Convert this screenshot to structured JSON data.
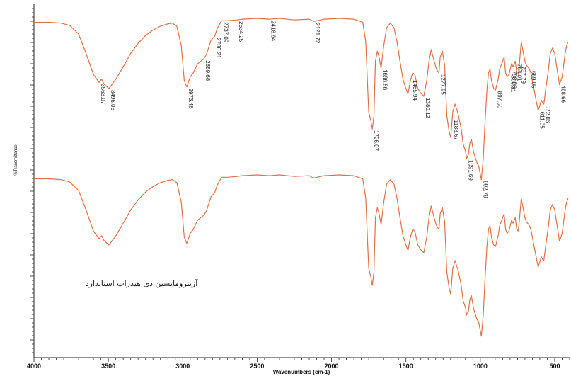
{
  "chart_data": {
    "type": "line",
    "title": "",
    "xlabel": "Wavenumbers (cm-1)",
    "ylabel": "%Transmittance",
    "xlim": [
      4000,
      400
    ],
    "x_reversed": true,
    "grid": false,
    "x_ticks": [
      "4000",
      "3500",
      "3000",
      "2500",
      "2000",
      "1500",
      "1000",
      "500"
    ],
    "x_tick_values": [
      4000,
      3500,
      3000,
      2500,
      2000,
      1500,
      1000,
      500
    ],
    "series": [
      {
        "color": "#e0704a",
        "points": [
          [
            4000,
            5
          ],
          [
            3900,
            5
          ],
          [
            3820,
            6
          ],
          [
            3760,
            9
          ],
          [
            3700,
            20
          ],
          [
            3650,
            45
          ],
          [
            3600,
            72
          ],
          [
            3563,
            82
          ],
          [
            3545,
            78
          ],
          [
            3530,
            84
          ],
          [
            3496,
            90
          ],
          [
            3450,
            78
          ],
          [
            3400,
            62
          ],
          [
            3350,
            45
          ],
          [
            3300,
            32
          ],
          [
            3250,
            22
          ],
          [
            3200,
            15
          ],
          [
            3150,
            10
          ],
          [
            3100,
            7
          ],
          [
            3070,
            6
          ],
          [
            3040,
            10
          ],
          [
            3010,
            35
          ],
          [
            2990,
            80
          ],
          [
            2973,
            88
          ],
          [
            2950,
            75
          ],
          [
            2930,
            70
          ],
          [
            2900,
            58
          ],
          [
            2859,
            52
          ],
          [
            2840,
            46
          ],
          [
            2810,
            28
          ],
          [
            2786,
            23
          ],
          [
            2770,
            14
          ],
          [
            2745,
            5
          ],
          [
            2737,
            3
          ],
          [
            2700,
            3
          ],
          [
            2634,
            2
          ],
          [
            2600,
            1
          ],
          [
            2500,
            0
          ],
          [
            2418,
            1
          ],
          [
            2350,
            0
          ],
          [
            2250,
            2
          ],
          [
            2150,
            1
          ],
          [
            2121,
            4
          ],
          [
            2050,
            1
          ],
          [
            1950,
            0
          ],
          [
            1850,
            1
          ],
          [
            1790,
            5
          ],
          [
            1770,
            30
          ],
          [
            1750,
            120
          ],
          [
            1736,
            131
          ],
          [
            1726,
            142
          ],
          [
            1715,
            125
          ],
          [
            1705,
            55
          ],
          [
            1692,
            42
          ],
          [
            1680,
            50
          ],
          [
            1667,
            64
          ],
          [
            1650,
            36
          ],
          [
            1630,
            12
          ],
          [
            1605,
            6
          ],
          [
            1580,
            12
          ],
          [
            1560,
            30
          ],
          [
            1540,
            55
          ],
          [
            1520,
            78
          ],
          [
            1500,
            90
          ],
          [
            1486,
            97
          ],
          [
            1470,
            80
          ],
          [
            1455,
            70
          ],
          [
            1440,
            72
          ],
          [
            1420,
            90
          ],
          [
            1400,
            96
          ],
          [
            1380,
            100
          ],
          [
            1360,
            80
          ],
          [
            1345,
            55
          ],
          [
            1330,
            40
          ],
          [
            1310,
            55
          ],
          [
            1295,
            65
          ],
          [
            1278,
            70
          ],
          [
            1270,
            50
          ],
          [
            1255,
            42
          ],
          [
            1240,
            60
          ],
          [
            1225,
            125
          ],
          [
            1210,
            145
          ],
          [
            1199,
            153
          ],
          [
            1185,
            120
          ],
          [
            1170,
            110
          ],
          [
            1150,
            122
          ],
          [
            1130,
            140
          ],
          [
            1115,
            162
          ],
          [
            1100,
            170
          ],
          [
            1092,
            180
          ],
          [
            1080,
            175
          ],
          [
            1070,
            160
          ],
          [
            1060,
            155
          ],
          [
            1045,
            172
          ],
          [
            1035,
            178
          ],
          [
            1023,
            185
          ],
          [
            1010,
            190
          ],
          [
            993,
            207
          ],
          [
            980,
            180
          ],
          [
            970,
            140
          ],
          [
            955,
            90
          ],
          [
            945,
            70
          ],
          [
            935,
            65
          ],
          [
            925,
            80
          ],
          [
            910,
            90
          ],
          [
            898,
            92
          ],
          [
            880,
            78
          ],
          [
            870,
            65
          ],
          [
            860,
            60
          ],
          [
            840,
            50
          ],
          [
            830,
            70
          ],
          [
            820,
            75
          ],
          [
            807,
            72
          ],
          [
            790,
            58
          ],
          [
            780,
            62
          ],
          [
            765,
            55
          ],
          [
            755,
            70
          ],
          [
            745,
            72
          ],
          [
            738,
            60
          ],
          [
            725,
            30
          ],
          [
            710,
            45
          ],
          [
            700,
            55
          ],
          [
            690,
            60
          ],
          [
            670,
            65
          ],
          [
            660,
            70
          ],
          [
            650,
            80
          ],
          [
            640,
            90
          ],
          [
            630,
            100
          ],
          [
            620,
            110
          ],
          [
            611,
            118
          ],
          [
            600,
            112
          ],
          [
            590,
            105
          ],
          [
            582,
            108
          ],
          [
            573,
            110
          ],
          [
            560,
            90
          ],
          [
            545,
            70
          ],
          [
            530,
            45
          ],
          [
            515,
            38
          ],
          [
            500,
            45
          ],
          [
            490,
            58
          ],
          [
            480,
            70
          ],
          [
            468,
            85
          ],
          [
            450,
            75
          ],
          [
            440,
            60
          ],
          [
            430,
            45
          ],
          [
            420,
            35
          ],
          [
            410,
            30
          ]
        ]
      },
      {
        "color": "#e0704a",
        "points": [
          [
            4000,
            5
          ],
          [
            3900,
            5
          ],
          [
            3820,
            6
          ],
          [
            3760,
            9
          ],
          [
            3700,
            20
          ],
          [
            3650,
            45
          ],
          [
            3600,
            72
          ],
          [
            3563,
            82
          ],
          [
            3545,
            78
          ],
          [
            3530,
            84
          ],
          [
            3496,
            90
          ],
          [
            3450,
            78
          ],
          [
            3400,
            62
          ],
          [
            3350,
            45
          ],
          [
            3300,
            32
          ],
          [
            3250,
            22
          ],
          [
            3200,
            15
          ],
          [
            3150,
            10
          ],
          [
            3100,
            7
          ],
          [
            3070,
            6
          ],
          [
            3040,
            10
          ],
          [
            3010,
            35
          ],
          [
            2990,
            80
          ],
          [
            2973,
            88
          ],
          [
            2950,
            75
          ],
          [
            2930,
            70
          ],
          [
            2900,
            58
          ],
          [
            2859,
            52
          ],
          [
            2840,
            46
          ],
          [
            2810,
            28
          ],
          [
            2786,
            23
          ],
          [
            2770,
            14
          ],
          [
            2745,
            5
          ],
          [
            2737,
            3
          ],
          [
            2700,
            3
          ],
          [
            2634,
            2
          ],
          [
            2600,
            1
          ],
          [
            2500,
            0
          ],
          [
            2418,
            1
          ],
          [
            2350,
            0
          ],
          [
            2250,
            2
          ],
          [
            2150,
            1
          ],
          [
            2121,
            4
          ],
          [
            2050,
            1
          ],
          [
            1950,
            0
          ],
          [
            1850,
            1
          ],
          [
            1790,
            5
          ],
          [
            1770,
            30
          ],
          [
            1750,
            120
          ],
          [
            1736,
            131
          ],
          [
            1726,
            142
          ],
          [
            1715,
            125
          ],
          [
            1705,
            55
          ],
          [
            1692,
            42
          ],
          [
            1680,
            50
          ],
          [
            1667,
            64
          ],
          [
            1650,
            36
          ],
          [
            1630,
            12
          ],
          [
            1605,
            6
          ],
          [
            1580,
            12
          ],
          [
            1560,
            30
          ],
          [
            1540,
            55
          ],
          [
            1520,
            78
          ],
          [
            1500,
            90
          ],
          [
            1486,
            97
          ],
          [
            1470,
            80
          ],
          [
            1455,
            70
          ],
          [
            1440,
            72
          ],
          [
            1420,
            90
          ],
          [
            1400,
            96
          ],
          [
            1380,
            100
          ],
          [
            1360,
            80
          ],
          [
            1345,
            55
          ],
          [
            1330,
            40
          ],
          [
            1310,
            55
          ],
          [
            1295,
            65
          ],
          [
            1278,
            70
          ],
          [
            1270,
            50
          ],
          [
            1255,
            42
          ],
          [
            1240,
            60
          ],
          [
            1225,
            125
          ],
          [
            1210,
            145
          ],
          [
            1199,
            153
          ],
          [
            1185,
            120
          ],
          [
            1170,
            110
          ],
          [
            1150,
            122
          ],
          [
            1130,
            140
          ],
          [
            1115,
            162
          ],
          [
            1100,
            170
          ],
          [
            1092,
            180
          ],
          [
            1080,
            175
          ],
          [
            1070,
            160
          ],
          [
            1060,
            155
          ],
          [
            1045,
            172
          ],
          [
            1035,
            178
          ],
          [
            1023,
            185
          ],
          [
            1010,
            190
          ],
          [
            993,
            207
          ],
          [
            980,
            180
          ],
          [
            970,
            140
          ],
          [
            955,
            90
          ],
          [
            945,
            70
          ],
          [
            935,
            65
          ],
          [
            925,
            80
          ],
          [
            910,
            90
          ],
          [
            898,
            92
          ],
          [
            880,
            78
          ],
          [
            870,
            65
          ],
          [
            860,
            60
          ],
          [
            840,
            50
          ],
          [
            830,
            70
          ],
          [
            820,
            75
          ],
          [
            807,
            72
          ],
          [
            790,
            58
          ],
          [
            780,
            62
          ],
          [
            765,
            55
          ],
          [
            755,
            70
          ],
          [
            745,
            72
          ],
          [
            738,
            60
          ],
          [
            725,
            30
          ],
          [
            710,
            45
          ],
          [
            700,
            55
          ],
          [
            690,
            60
          ],
          [
            670,
            65
          ],
          [
            660,
            70
          ],
          [
            650,
            80
          ],
          [
            640,
            90
          ],
          [
            630,
            100
          ],
          [
            620,
            110
          ],
          [
            611,
            118
          ],
          [
            600,
            112
          ],
          [
            590,
            105
          ],
          [
            582,
            108
          ],
          [
            573,
            110
          ],
          [
            560,
            90
          ],
          [
            545,
            70
          ],
          [
            530,
            45
          ],
          [
            515,
            38
          ],
          [
            500,
            45
          ],
          [
            490,
            58
          ],
          [
            480,
            70
          ],
          [
            468,
            85
          ],
          [
            450,
            75
          ],
          [
            440,
            60
          ],
          [
            430,
            45
          ],
          [
            420,
            35
          ],
          [
            410,
            30
          ]
        ]
      }
    ],
    "peak_labels": [
      {
        "x": 3563.07,
        "text": "3563.07"
      },
      {
        "x": 3496.06,
        "text": "3496.06"
      },
      {
        "x": 2973.46,
        "text": "2973.46"
      },
      {
        "x": 2859.68,
        "text": "2859.68"
      },
      {
        "x": 2786.21,
        "text": "2786.21"
      },
      {
        "x": 2737.09,
        "text": "2737.09"
      },
      {
        "x": 2634.25,
        "text": "2634.25"
      },
      {
        "x": 2418.64,
        "text": "2418.64"
      },
      {
        "x": 2121.72,
        "text": "2121.72"
      },
      {
        "x": 1726.07,
        "text": "1726.07"
      },
      {
        "x": 1666.86,
        "text": "1666.86"
      },
      {
        "x": 1465.94,
        "text": "1465.94"
      },
      {
        "x": 1380.12,
        "text": "1380.12"
      },
      {
        "x": 1277.95,
        "text": "1277.95"
      },
      {
        "x": 1188.67,
        "text": "1188.67"
      },
      {
        "x": 1091.69,
        "text": "1091.69"
      },
      {
        "x": 992.79,
        "text": "992.79"
      },
      {
        "x": 897.55,
        "text": "897.55"
      },
      {
        "x": 806.11,
        "text": "806.11"
      },
      {
        "x": 798.96,
        "text": "798.96"
      },
      {
        "x": 764.01,
        "text": "764.01"
      },
      {
        "x": 737.79,
        "text": "737.79"
      },
      {
        "x": 669.05,
        "text": "669.05"
      },
      {
        "x": 611.05,
        "text": "611.05"
      },
      {
        "x": 572.86,
        "text": "572.86"
      },
      {
        "x": 468.66,
        "text": "468.66"
      }
    ],
    "annotation": "آزیترومایسین دی هیدرات استاندارد"
  }
}
